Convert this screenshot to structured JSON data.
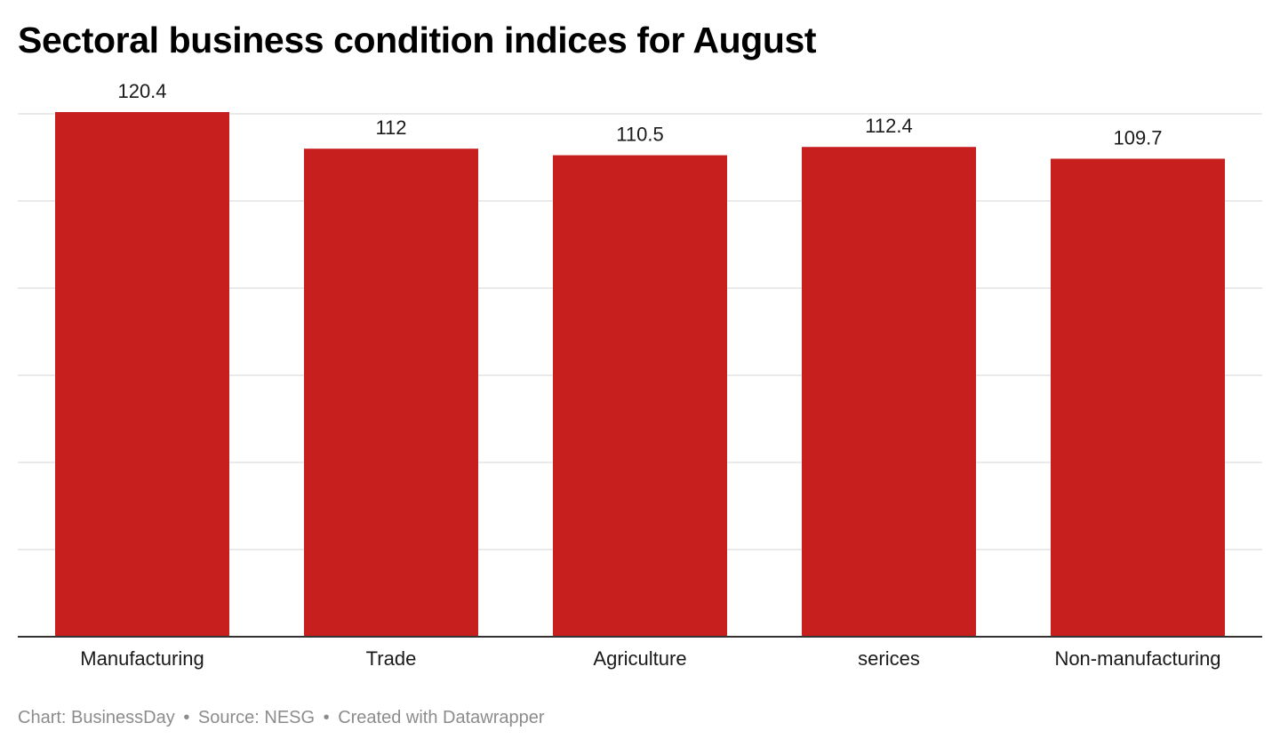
{
  "title": "Sectoral business condition indices for August",
  "chart_data": {
    "type": "bar",
    "categories": [
      "Manufacturing",
      "Trade",
      "Agriculture",
      "serices",
      "Non-manufacturing"
    ],
    "values": [
      120.4,
      112,
      110.5,
      112.4,
      109.7
    ],
    "value_labels": [
      "120.4",
      "112",
      "110.5",
      "112.4",
      "109.7"
    ],
    "title": "Sectoral business condition indices for August",
    "xlabel": "",
    "ylabel": "",
    "ylim": [
      0,
      120
    ],
    "grid": true,
    "bar_color": "#c71e1e",
    "gridline_color": "#e4e4e4",
    "baseline_color": "#333333"
  },
  "footer": {
    "chart_credit": "Chart: BusinessDay",
    "source": "Source: NESG",
    "created_with": "Created with Datawrapper",
    "separator": "•"
  }
}
